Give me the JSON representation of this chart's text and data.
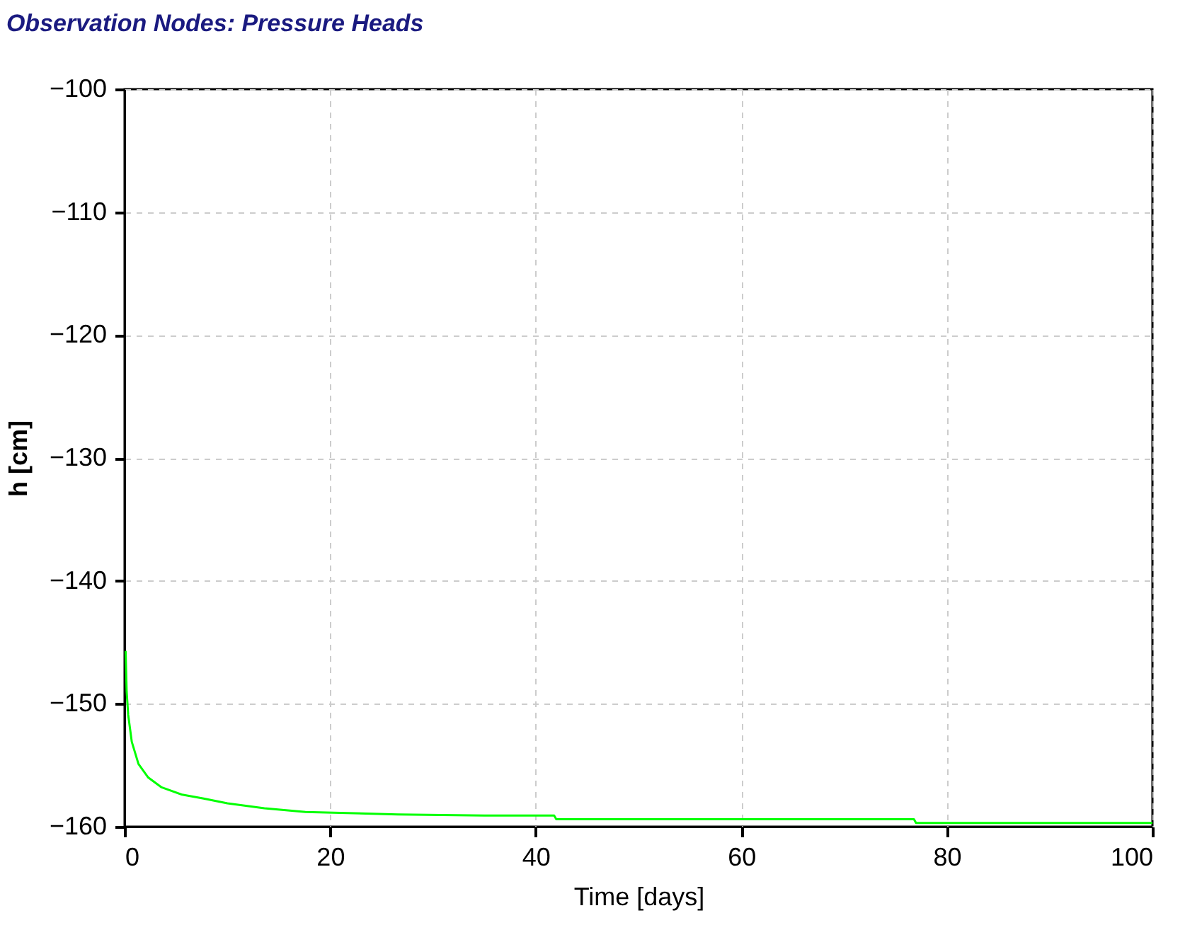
{
  "chart_data": {
    "type": "line",
    "title": "Observation Nodes: Pressure Heads",
    "xlabel": "Time [days]",
    "ylabel": "h [cm]",
    "x": [
      0.1,
      0.2,
      0.35,
      0.7,
      1.35,
      2.3,
      3.6,
      5.6,
      7.6,
      10,
      13.6,
      17.6,
      26.6,
      35,
      41.8,
      42,
      76.8,
      77,
      100
    ],
    "series": [
      {
        "color": "#00ff00",
        "values": [
          -145.7,
          -149,
          -150.9,
          -153.1,
          -154.9,
          -156.0,
          -156.8,
          -157.4,
          -157.7,
          -158.1,
          -158.5,
          -158.8,
          -159.0,
          -159.1,
          -159.1,
          -159.4,
          -159.4,
          -159.7,
          -159.7
        ]
      }
    ],
    "xlim": [
      0,
      100
    ],
    "xticks": [
      0,
      20,
      40,
      60,
      80,
      100
    ],
    "ylim": [
      -160,
      -100
    ],
    "yticks": [
      -160,
      -150,
      -140,
      -130,
      -120,
      -110,
      -100
    ],
    "grid": true,
    "legend": false
  }
}
